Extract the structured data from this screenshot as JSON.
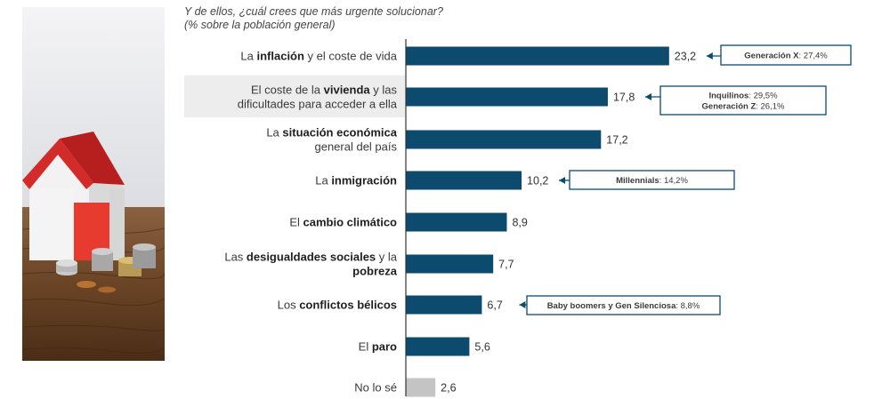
{
  "question": {
    "line1": "Y de ellos, ¿cuál crees que más urgente solucionar?",
    "line2": "(% sobre la población general)"
  },
  "colors": {
    "bar": "#0c4a6e",
    "bar_muted": "#c4c4c4",
    "highlight_row": "#ededed",
    "axis": "#333333"
  },
  "chart_data": {
    "type": "bar",
    "orientation": "horizontal",
    "title": "Y de ellos, ¿cuál crees que más urgente solucionar?",
    "subtitle": "(% sobre la población general)",
    "xlim": [
      0,
      25
    ],
    "categories": [
      "La inflación y el coste de vida",
      "El coste de la vivienda y las dificultades para acceder a ella",
      "La situación económica general del país",
      "La inmigración",
      "El cambio climático",
      "Las desigualdades sociales y la pobreza",
      "Los conflictos bélicos",
      "El paro",
      "No lo sé"
    ],
    "values": [
      23.2,
      17.8,
      17.2,
      10.2,
      8.9,
      7.7,
      6.7,
      5.6,
      2.6
    ],
    "value_labels": [
      "23,2",
      "17,8",
      "17,2",
      "10,2",
      "8,9",
      "7,7",
      "6,7",
      "5,6",
      "2,6"
    ],
    "label_parts": [
      [
        [
          "La ",
          false
        ],
        [
          "inflación",
          true
        ],
        [
          " y el coste de vida",
          false
        ]
      ],
      [
        [
          "El coste de la ",
          false
        ],
        [
          "vivienda",
          true
        ],
        [
          " y las",
          false
        ],
        [
          "|",
          false
        ],
        [
          "dificultades para acceder a ella",
          false
        ]
      ],
      [
        [
          "La ",
          false
        ],
        [
          "situación económica",
          true
        ],
        [
          "|",
          false
        ],
        [
          "general del país",
          false
        ]
      ],
      [
        [
          "La ",
          false
        ],
        [
          "inmigración",
          true
        ]
      ],
      [
        [
          "El ",
          false
        ],
        [
          "cambio climático",
          true
        ]
      ],
      [
        [
          "Las ",
          false
        ],
        [
          "desigualdades sociales",
          true
        ],
        [
          " y la",
          false
        ],
        [
          "|",
          false
        ],
        [
          "pobreza",
          true
        ]
      ],
      [
        [
          "Los ",
          false
        ],
        [
          "conflictos bélicos",
          true
        ]
      ],
      [
        [
          "El ",
          false
        ],
        [
          "paro",
          true
        ]
      ],
      [
        [
          "No lo sé",
          false
        ]
      ]
    ],
    "highlighted_category": 1,
    "muted_category": 8,
    "annotations": [
      {
        "category": 0,
        "lines": [
          [
            [
              "Generación X",
              true
            ],
            [
              ": 27,4%",
              false
            ]
          ]
        ]
      },
      {
        "category": 1,
        "lines": [
          [
            [
              "Inquilinos",
              true
            ],
            [
              ": 29,5%",
              false
            ]
          ],
          [
            [
              "Generación Z",
              true
            ],
            [
              ": 26,1%",
              false
            ]
          ]
        ]
      },
      {
        "category": 3,
        "lines": [
          [
            [
              "Millennials",
              true
            ],
            [
              ": 14,2%",
              false
            ]
          ]
        ]
      },
      {
        "category": 6,
        "lines": [
          [
            [
              "Baby boomers y Gen Silenciosa",
              true
            ],
            [
              ": 8,8%",
              false
            ]
          ]
        ]
      }
    ]
  }
}
